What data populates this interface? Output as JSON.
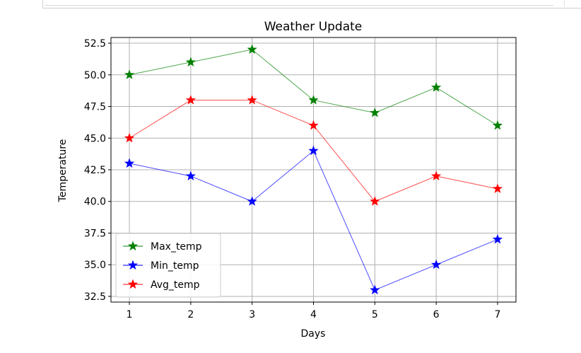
{
  "chart_data": {
    "type": "line",
    "title": "Weather Update",
    "xlabel": "Days",
    "ylabel": "Temperature",
    "x": [
      1,
      2,
      3,
      4,
      5,
      6,
      7
    ],
    "xlim": [
      0.7,
      7.3
    ],
    "ylim": [
      32.05,
      52.95
    ],
    "xticks": [
      "1",
      "2",
      "3",
      "4",
      "5",
      "6",
      "7"
    ],
    "yticks": [
      "32.5",
      "35.0",
      "37.5",
      "40.0",
      "42.5",
      "45.0",
      "47.5",
      "50.0",
      "52.5"
    ],
    "grid": true,
    "legend_position": "lower-left",
    "marker": "star",
    "series": [
      {
        "name": "Max_temp",
        "color": "#008000",
        "values": [
          50,
          51,
          52,
          48,
          47,
          49,
          46
        ]
      },
      {
        "name": "Min_temp",
        "color": "#0000ff",
        "values": [
          43,
          42,
          40,
          44,
          33,
          35,
          37
        ]
      },
      {
        "name": "Avg_temp",
        "color": "#ff0000",
        "values": [
          45,
          48,
          48,
          46,
          40,
          42,
          41
        ]
      }
    ]
  }
}
